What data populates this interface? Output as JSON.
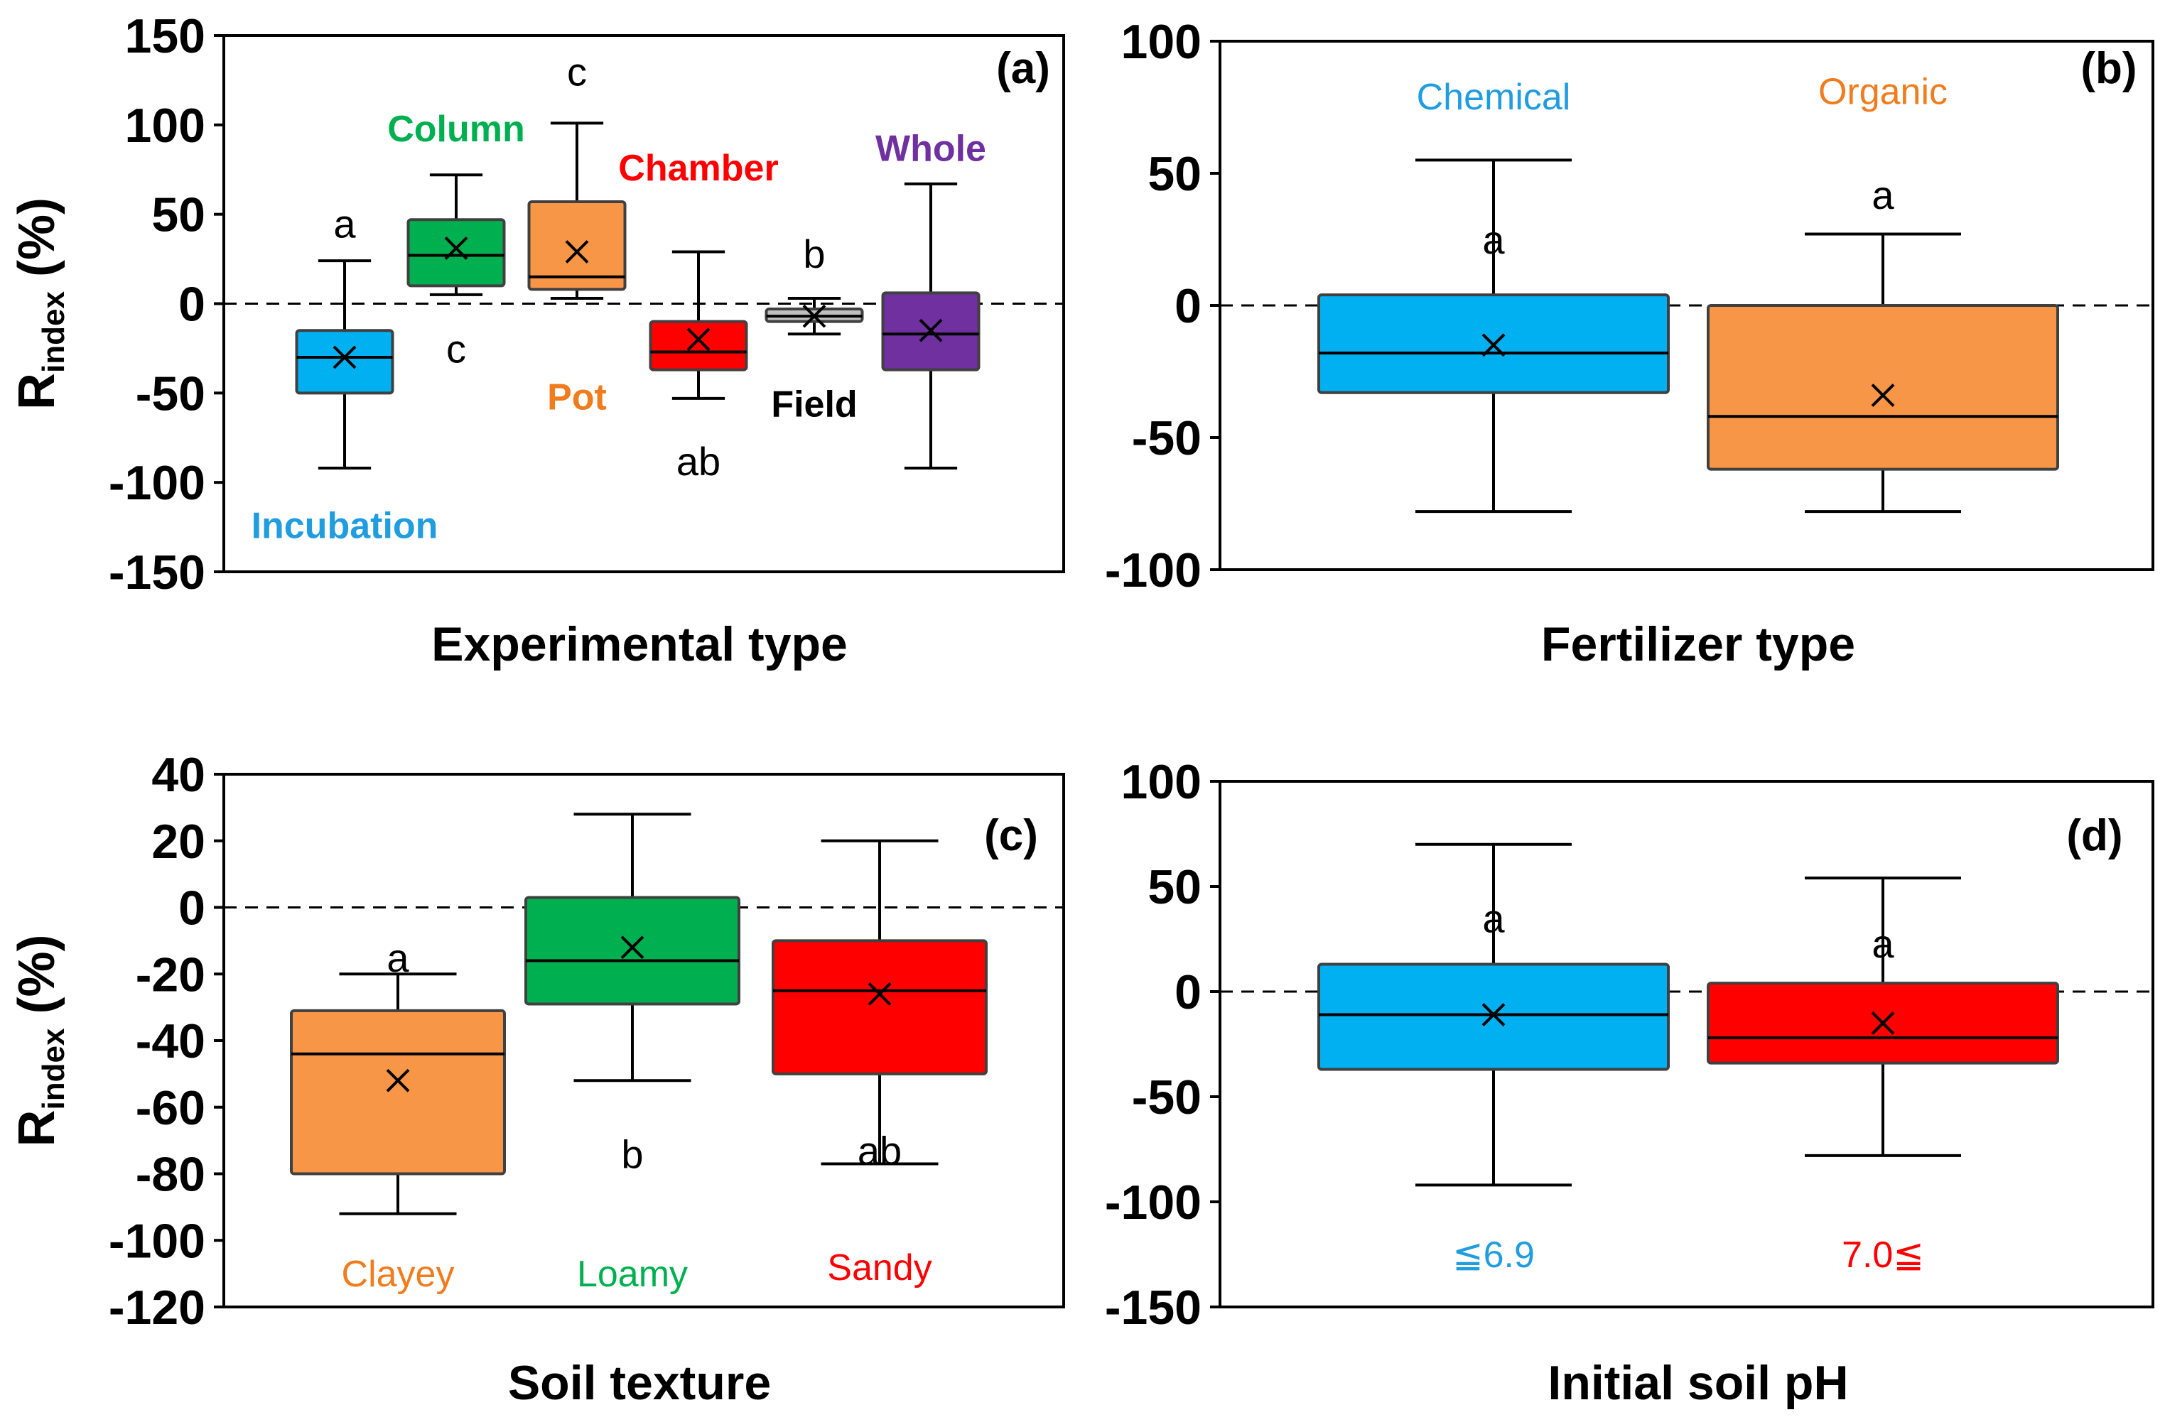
{
  "chart_data": [
    {
      "type": "box",
      "panel_label": "(a)",
      "xlabel": "Experimental type",
      "ylabel": "R",
      "ylabel_sub": "index",
      "ylabel_suffix": " (%)",
      "ylim": [
        -150,
        150
      ],
      "yticks": [
        150,
        100,
        50,
        0,
        -50,
        -100,
        -150
      ],
      "reference_line": 0,
      "categories": [
        {
          "name": "Incubation",
          "color": "#00b0f0",
          "label_color": "#1f9de0",
          "min": -92,
          "q1": -50,
          "median": -30,
          "q3": -15,
          "max": 24,
          "mean": -30,
          "sig": "a",
          "sig_at": 45,
          "name_at": -124
        },
        {
          "name": "Column",
          "color": "#00b050",
          "label_color": "#00b050",
          "min": 5,
          "q1": 10,
          "median": 27,
          "q3": 47,
          "max": 72,
          "mean": 31,
          "sig": "c",
          "sig_at": -25,
          "name_at": 98
        },
        {
          "name": "Pot",
          "color": "#f79646",
          "label_color": "#f07c1e",
          "min": 3,
          "q1": 8,
          "median": 15,
          "q3": 57,
          "max": 101,
          "mean": 29,
          "sig": "c",
          "sig_at": 130,
          "name_at": -52
        },
        {
          "name": "Chamber",
          "color": "#ff0000",
          "label_color": "#ff0000",
          "min": -53,
          "q1": -37,
          "median": -27,
          "q3": -10,
          "max": 29,
          "mean": -20,
          "sig": "ab",
          "sig_at": -88,
          "name_at": 76
        },
        {
          "name": "Field",
          "color": "#bfbfbf",
          "label_color": "#000000",
          "min": -17,
          "q1": -10,
          "median": -7,
          "q3": -3,
          "max": 3,
          "mean": -7,
          "sig": "b",
          "sig_at": 28,
          "name_at": -56
        },
        {
          "name": "Whole",
          "color": "#7030a0",
          "label_color": "#7030a0",
          "min": -92,
          "q1": -37,
          "median": -17,
          "q3": 6,
          "max": 67,
          "mean": -15,
          "sig": "",
          "sig_at": 0,
          "name_at": 87
        }
      ]
    },
    {
      "type": "box",
      "panel_label": "(b)",
      "xlabel": "Fertilizer type",
      "ylim": [
        -100,
        100
      ],
      "yticks": [
        100,
        50,
        0,
        -50,
        -100
      ],
      "reference_line": 0,
      "categories": [
        {
          "name": "Chemical",
          "color": "#00b0f0",
          "label_color": "#1f9de0",
          "min": -78,
          "q1": -33,
          "median": -18,
          "q3": 4,
          "max": 55,
          "mean": -15,
          "sig": "a",
          "sig_at": 25,
          "name_at": 79
        },
        {
          "name": "Organic",
          "color": "#f79646",
          "label_color": "#f07c1e",
          "min": -78,
          "q1": -62,
          "median": -42,
          "q3": 0,
          "max": 27,
          "mean": -34,
          "sig": "a",
          "sig_at": 42,
          "name_at": 81
        }
      ]
    },
    {
      "type": "box",
      "panel_label": "(c)",
      "xlabel": "Soil texture",
      "ylabel": "R",
      "ylabel_sub": "index",
      "ylabel_suffix": " (%)",
      "ylim": [
        -120,
        40
      ],
      "yticks": [
        40,
        20,
        0,
        -20,
        -40,
        -60,
        -80,
        -100,
        -120
      ],
      "reference_line": 0,
      "categories": [
        {
          "name": "Clayey",
          "color": "#f79646",
          "label_color": "#f07c1e",
          "min": -92,
          "q1": -80,
          "median": -44,
          "q3": -31,
          "max": -20,
          "mean": -52,
          "sig": "a",
          "sig_at": -15,
          "name_at": -110
        },
        {
          "name": "Loamy",
          "color": "#00b050",
          "label_color": "#00b050",
          "min": -52,
          "q1": -29,
          "median": -16,
          "q3": 3,
          "max": 28,
          "mean": -12,
          "sig": "b",
          "sig_at": -74,
          "name_at": -110
        },
        {
          "name": "Sandy",
          "color": "#ff0000",
          "label_color": "#ff0000",
          "min": -77,
          "q1": -50,
          "median": -25,
          "q3": -10,
          "max": 20,
          "mean": -26,
          "sig": "ab",
          "sig_at": -73,
          "name_at": -108
        }
      ]
    },
    {
      "type": "box",
      "panel_label": "(d)",
      "xlabel": "Initial soil pH",
      "ylim": [
        -150,
        100
      ],
      "yticks": [
        100,
        50,
        0,
        -50,
        -100,
        -150
      ],
      "reference_line": 0,
      "categories": [
        {
          "name": "≦6.9",
          "color": "#00b0f0",
          "label_color": "#1f9de0",
          "min": -92,
          "q1": -37,
          "median": -11,
          "q3": 13,
          "max": 70,
          "mean": -11,
          "sig": "a",
          "sig_at": 35,
          "name_at": -125
        },
        {
          "name": "7.0≦",
          "color": "#ff0000",
          "label_color": "#ff0000",
          "min": -78,
          "q1": -34,
          "median": -22,
          "q3": 4,
          "max": 54,
          "mean": -15,
          "sig": "a",
          "sig_at": 23,
          "name_at": -125
        }
      ]
    }
  ]
}
